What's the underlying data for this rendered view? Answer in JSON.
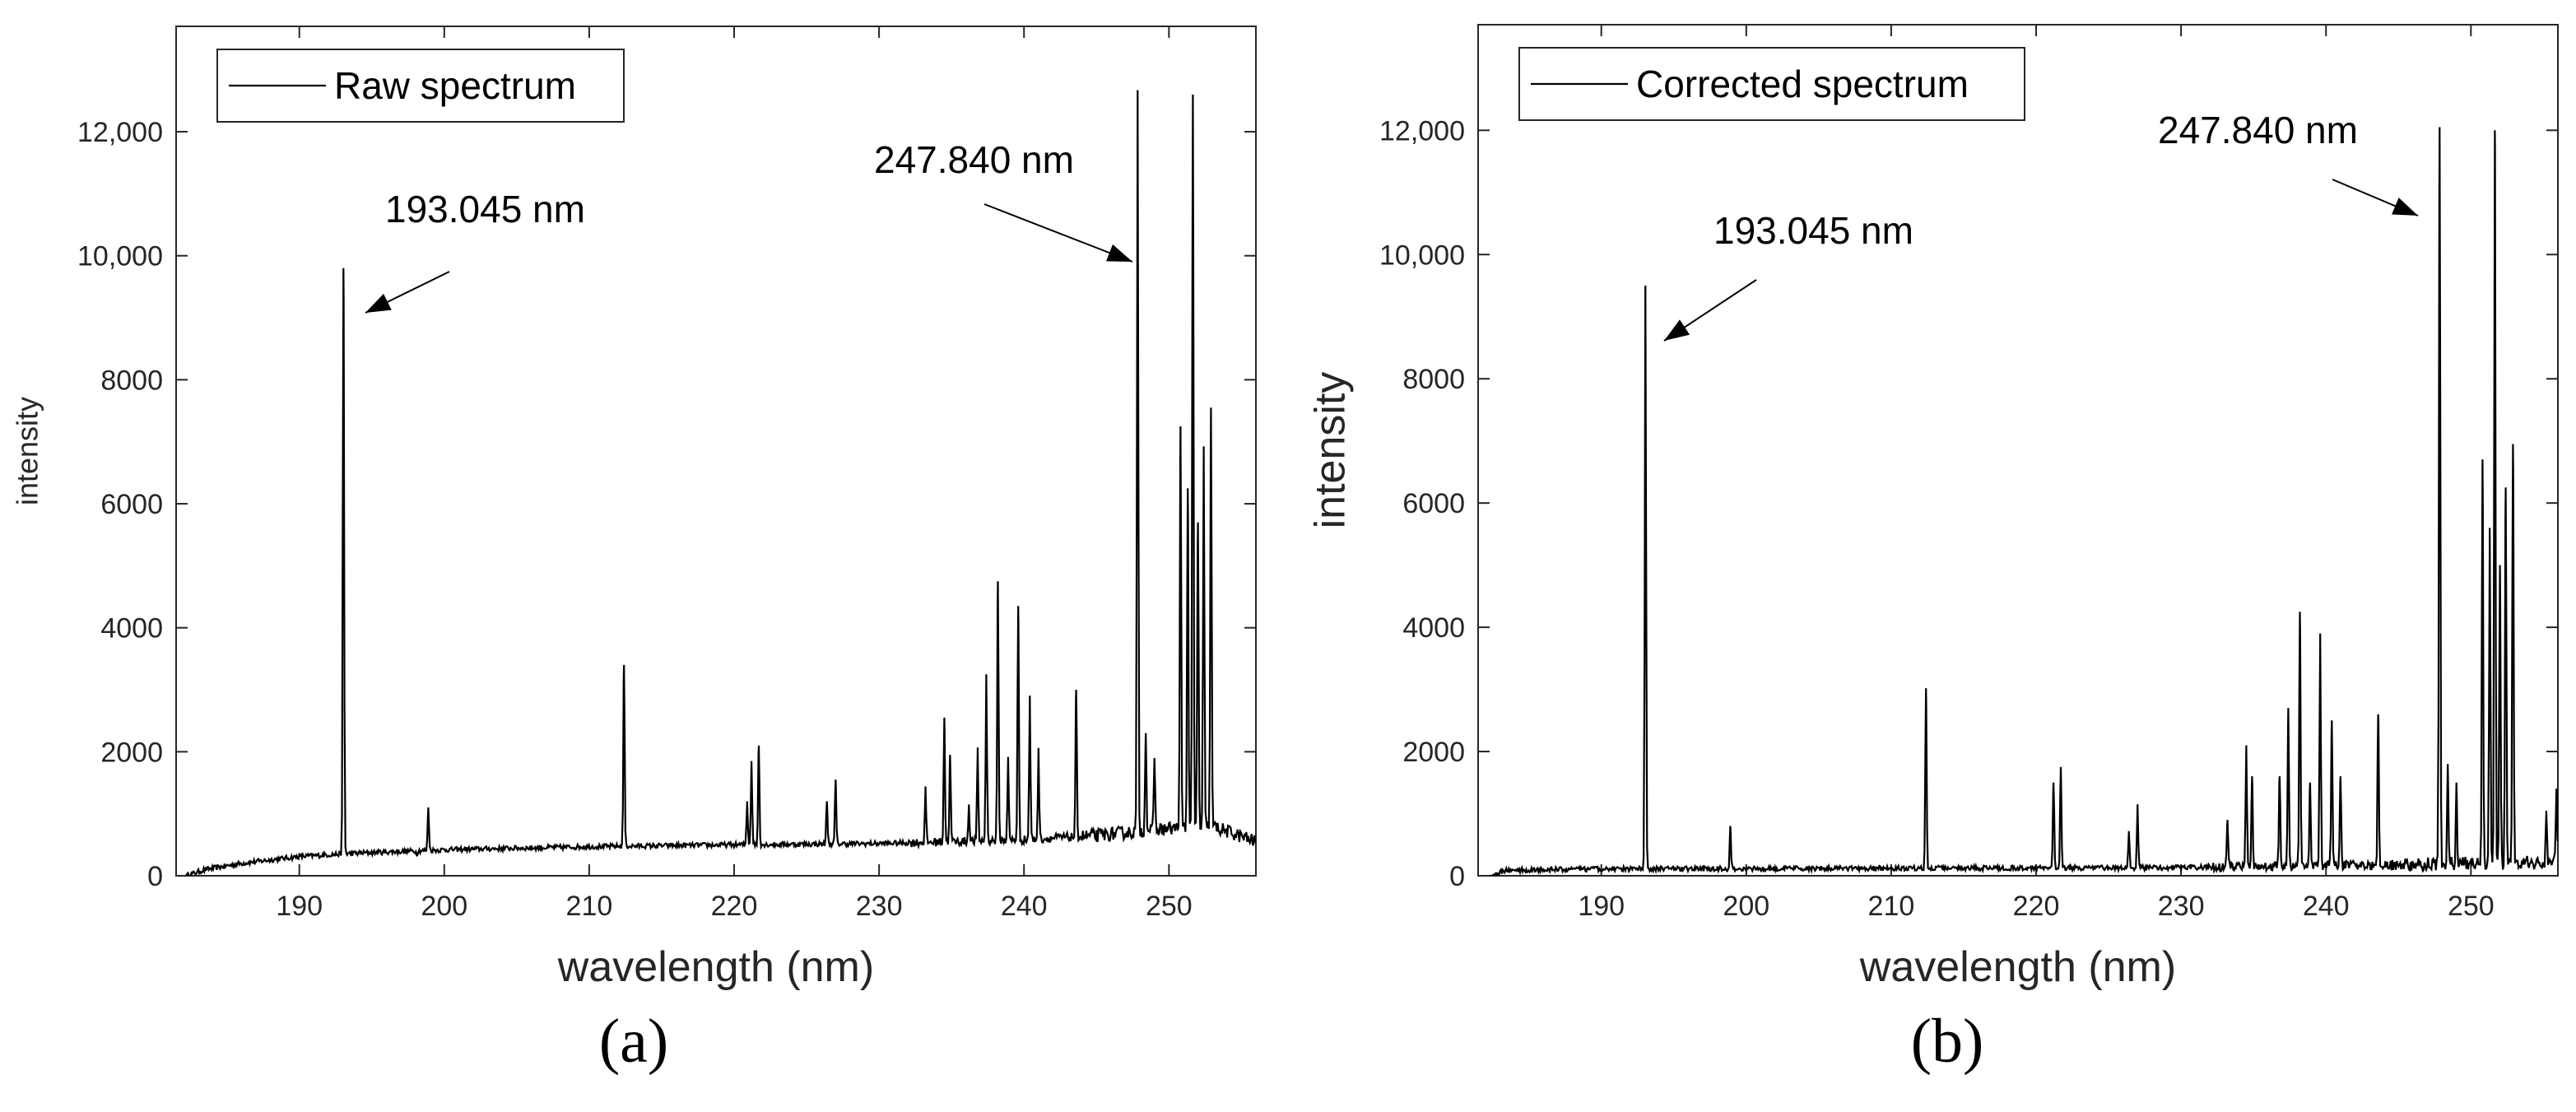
{
  "chart_data": [
    {
      "type": "line",
      "panel_label": "(a)",
      "panel_letter": "a",
      "xlabel": "wavelength (nm)",
      "ylabel": "intensity",
      "xlim": [
        181.5,
        256
      ],
      "ylim": [
        0,
        13700
      ],
      "xticks": [
        190,
        200,
        210,
        220,
        230,
        240,
        250
      ],
      "yticks": [
        0,
        2000,
        4000,
        6000,
        8000,
        10000,
        12000
      ],
      "ytick_labels": [
        "0",
        "2000",
        "4000",
        "6000",
        "8000",
        "10,000",
        "12,000"
      ],
      "grid": false,
      "legend_position": "top-left",
      "series": [
        {
          "name": "Raw spectrum",
          "color": "#000000",
          "baseline": [
            [
              182.2,
              0
            ],
            [
              183.5,
              100
            ],
            [
              186,
              200
            ],
            [
              190,
              310
            ],
            [
              193.5,
              360
            ],
            [
              200,
              420
            ],
            [
              210,
              470
            ],
            [
              220,
              500
            ],
            [
              230,
              520
            ],
            [
              240,
              580
            ],
            [
              245,
              650
            ],
            [
              250,
              760
            ],
            [
              253,
              800
            ],
            [
              256,
              550
            ]
          ],
          "peaks": [
            {
              "x": 193.045,
              "y": 9800
            },
            {
              "x": 198.1,
              "y": 350
            },
            {
              "x": 198.9,
              "y": 1100
            },
            {
              "x": 212.4,
              "y": 3400
            },
            {
              "x": 220.9,
              "y": 1200
            },
            {
              "x": 221.2,
              "y": 1850
            },
            {
              "x": 221.7,
              "y": 2100
            },
            {
              "x": 226.4,
              "y": 1200
            },
            {
              "x": 227.0,
              "y": 1550
            },
            {
              "x": 233.2,
              "y": 1400
            },
            {
              "x": 234.5,
              "y": 2550
            },
            {
              "x": 234.9,
              "y": 1950
            },
            {
              "x": 236.2,
              "y": 1150
            },
            {
              "x": 236.8,
              "y": 2000
            },
            {
              "x": 237.4,
              "y": 3250
            },
            {
              "x": 238.2,
              "y": 4750
            },
            {
              "x": 238.9,
              "y": 1900
            },
            {
              "x": 239.6,
              "y": 4350
            },
            {
              "x": 240.4,
              "y": 2900
            },
            {
              "x": 241.0,
              "y": 2000
            },
            {
              "x": 243.6,
              "y": 3000
            },
            {
              "x": 247.84,
              "y": 12600
            },
            {
              "x": 248.4,
              "y": 2300
            },
            {
              "x": 249.0,
              "y": 1900
            },
            {
              "x": 250.8,
              "y": 7250
            },
            {
              "x": 251.3,
              "y": 6250
            },
            {
              "x": 251.65,
              "y": 12600
            },
            {
              "x": 252.0,
              "y": 5700
            },
            {
              "x": 252.4,
              "y": 6850
            },
            {
              "x": 252.9,
              "y": 7550
            }
          ]
        }
      ],
      "annotations": [
        {
          "text": "193.045 nm",
          "x": 193.045,
          "y": 9100
        },
        {
          "text": "247.840 nm",
          "x": 247.84,
          "y": 10350
        }
      ]
    },
    {
      "type": "line",
      "panel_label": "(b)",
      "panel_letter": "b",
      "xlabel": "wavelength (nm)",
      "ylabel": "intensity",
      "xlim": [
        181.5,
        256
      ],
      "ylim": [
        0,
        13700
      ],
      "xticks": [
        190,
        200,
        210,
        220,
        230,
        240,
        250
      ],
      "yticks": [
        0,
        2000,
        4000,
        6000,
        8000,
        10000,
        12000
      ],
      "ytick_labels": [
        "0",
        "2000",
        "4000",
        "6000",
        "8000",
        "10,000",
        "12,000"
      ],
      "grid": false,
      "legend_position": "top-left",
      "series": [
        {
          "name": "Corrected spectrum",
          "color": "#000000",
          "baseline": [
            [
              182.3,
              0
            ],
            [
              183.5,
              90
            ],
            [
              190,
              110
            ],
            [
              210,
              120
            ],
            [
              230,
              130
            ],
            [
              245,
              180
            ],
            [
              256,
              220
            ]
          ],
          "peaks": [
            {
              "x": 193.045,
              "y": 9500
            },
            {
              "x": 198.9,
              "y": 800
            },
            {
              "x": 212.4,
              "y": 3020
            },
            {
              "x": 221.2,
              "y": 1500
            },
            {
              "x": 221.7,
              "y": 1750
            },
            {
              "x": 226.4,
              "y": 700
            },
            {
              "x": 227.0,
              "y": 1150
            },
            {
              "x": 233.2,
              "y": 900
            },
            {
              "x": 234.5,
              "y": 2100
            },
            {
              "x": 234.9,
              "y": 1600
            },
            {
              "x": 236.8,
              "y": 1600
            },
            {
              "x": 237.4,
              "y": 2700
            },
            {
              "x": 238.2,
              "y": 4250
            },
            {
              "x": 238.9,
              "y": 1500
            },
            {
              "x": 239.6,
              "y": 3900
            },
            {
              "x": 240.4,
              "y": 2500
            },
            {
              "x": 241.0,
              "y": 1600
            },
            {
              "x": 243.6,
              "y": 2600
            },
            {
              "x": 247.84,
              "y": 12050
            },
            {
              "x": 248.4,
              "y": 1800
            },
            {
              "x": 249.0,
              "y": 1500
            },
            {
              "x": 250.8,
              "y": 6700
            },
            {
              "x": 251.3,
              "y": 5600
            },
            {
              "x": 251.65,
              "y": 12000
            },
            {
              "x": 252.0,
              "y": 5000
            },
            {
              "x": 252.4,
              "y": 6250
            },
            {
              "x": 252.9,
              "y": 6950
            },
            {
              "x": 255.2,
              "y": 1000
            },
            {
              "x": 255.9,
              "y": 1400
            }
          ]
        }
      ],
      "annotations": [
        {
          "text": "193.045 nm",
          "x": 193.045,
          "y": 8800
        },
        {
          "text": "247.840 nm",
          "x": 247.84,
          "y": 10750
        }
      ]
    }
  ]
}
